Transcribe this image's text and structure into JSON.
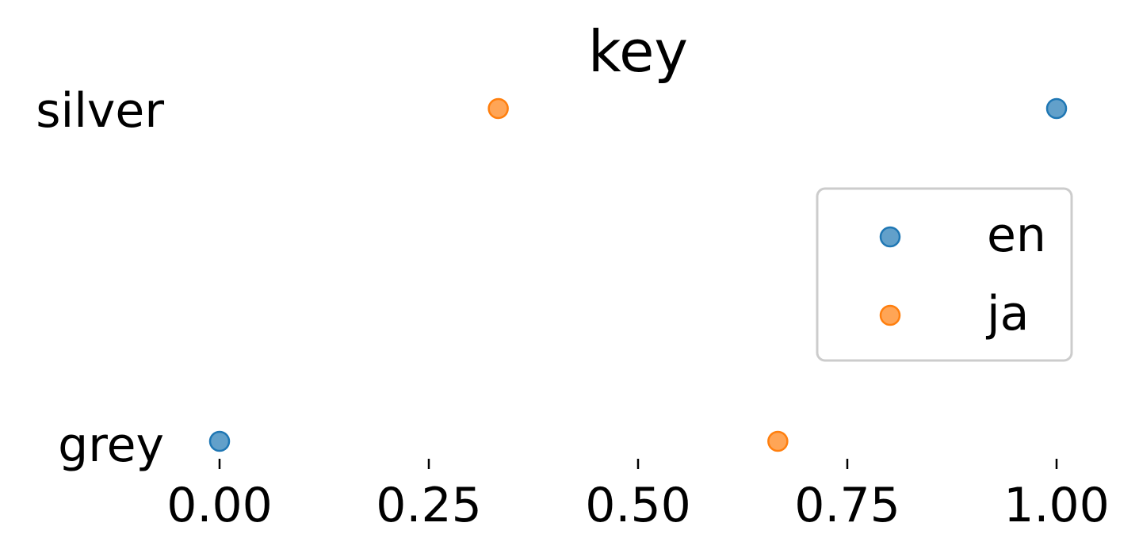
{
  "chart_data": {
    "type": "scatter",
    "title": "key",
    "xlabel": "",
    "ylabel": "",
    "categories": [
      "grey",
      "silver"
    ],
    "xlim": [
      0.0,
      1.0
    ],
    "xticks": [
      "0.00",
      "0.25",
      "0.50",
      "0.75",
      "1.00"
    ],
    "xtick_values": [
      0.0,
      0.25,
      0.5,
      0.75,
      1.0
    ],
    "grid": false,
    "legend_position": "right",
    "series": [
      {
        "name": "en",
        "color": "#1f77b4",
        "points": [
          {
            "category": "silver",
            "x": 1.0
          },
          {
            "category": "grey",
            "x": 0.0
          }
        ]
      },
      {
        "name": "ja",
        "color": "#ff7f0e",
        "points": [
          {
            "category": "silver",
            "x": 0.333
          },
          {
            "category": "grey",
            "x": 0.667
          }
        ]
      }
    ]
  }
}
